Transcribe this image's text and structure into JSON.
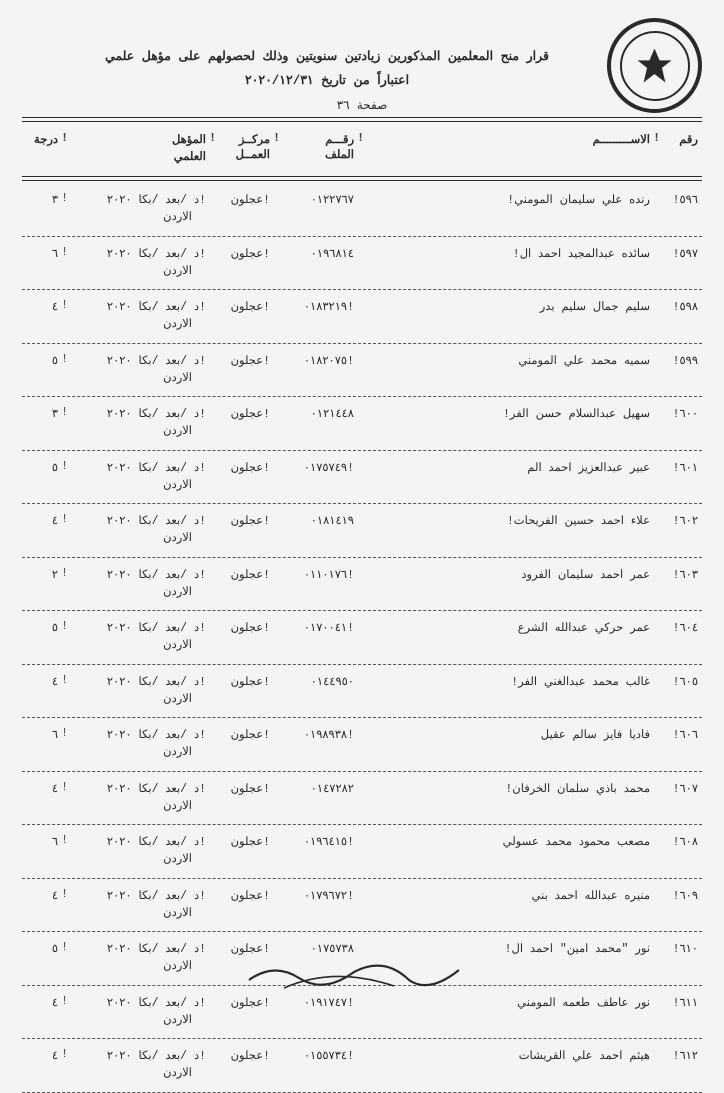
{
  "seal_label": "المملكة الأردنية الهاشمية — وزارة التربية والتعليم",
  "title_line1": "قرار منح المعلمين المذكورين زيادتين سنويتين وذلك لحصولهم على مؤهل علمي",
  "title_line2": "اعتباراً من تاريخ ٢٠٢٠/١٢/٣١",
  "page_label": "صفحة ٣٦",
  "headers": {
    "seq": "رقم",
    "name": "الاســـــــــم",
    "file_l1": "رقـــم",
    "file_l2": "الملف",
    "center_l1": "مركــز",
    "center_l2": "العمــل",
    "qual_l1": "المؤهل",
    "qual_l2": "العلمي",
    "grade": "درجة"
  },
  "qual_common_l1": "!د /بعد /بكا   ٢٠٢٠",
  "qual_common_l2": "الاردن",
  "center_common": "!عجلون",
  "rows": [
    {
      "seq": "٥٩٦!",
      "name": "رنده علي سليمان المومني!",
      "file": "٠١٢٢٧٦٧",
      "grade": "٣"
    },
    {
      "seq": "٥٩٧!",
      "name": "سائده عبدالمجيد احمد ال!",
      "file": "٠١٩٦٨١٤",
      "grade": "٦"
    },
    {
      "seq": "٥٩٨!",
      "name": "سليم جمال سليم بدر",
      "file": "!٠١٨٣٢١٩",
      "grade": "٤"
    },
    {
      "seq": "٥٩٩!",
      "name": "سميه محمد علي المومني",
      "file": "!٠١٨٢٠٧٥",
      "grade": "٥"
    },
    {
      "seq": "٦٠٠!",
      "name": "سهيل عبدالسلام حسن الفر!",
      "file": "٠١٢١٤٤٨",
      "grade": "٣"
    },
    {
      "seq": "٦٠١!",
      "name": "عبير عبدالعزيز احمد الم",
      "file": "!٠١٧٥٧٤٩",
      "grade": "٥"
    },
    {
      "seq": "٦٠٢!",
      "name": "علاء احمد حسين الفريحات!",
      "file": "٠١٨١٤١٩",
      "grade": "٤"
    },
    {
      "seq": "٦٠٣!",
      "name": "عمر احمد سليمان الفرود",
      "file": "!٠١١٠١٧٦",
      "grade": "٢"
    },
    {
      "seq": "٦٠٤!",
      "name": "عمر حركي عبدالله الشرع",
      "file": "!٠١٧٠٠٤١",
      "grade": "٥"
    },
    {
      "seq": "٦٠٥!",
      "name": "غالب محمد عبدالغني الفر!",
      "file": "٠١٤٤٩٥٠",
      "grade": "٤"
    },
    {
      "seq": "٦٠٦!",
      "name": "فاديا فايز سالم عقيل",
      "file": "!٠١٩٨٩٣٨",
      "grade": "٦"
    },
    {
      "seq": "٦٠٧!",
      "name": "محمد باذي سلمان الخرفان!",
      "file": "٠١٤٧٢٨٢",
      "grade": "٤"
    },
    {
      "seq": "٦٠٨!",
      "name": "مصعب محمود محمد عسولي",
      "file": "!٠١٩٦٤١٥",
      "grade": "٦"
    },
    {
      "seq": "٦٠٩!",
      "name": "منيره عبدالله احمد بني",
      "file": "!٠١٧٩٦٧٢",
      "grade": "٤"
    },
    {
      "seq": "٦١٠!",
      "name": "نور \"محمد امين\" احمد ال!",
      "file": "٠١٧٥٧٣٨",
      "grade": "٥"
    },
    {
      "seq": "٦١١!",
      "name": "نور عاطف طعمه المومني",
      "file": "!٠١٩١٧٤٧",
      "grade": "٤"
    },
    {
      "seq": "٦١٢!",
      "name": "هيثم احمد علي القريشات",
      "file": "!٠١٥٥٧٣٤",
      "grade": "٤"
    }
  ],
  "colors": {
    "text": "#2a2a2a",
    "bg": "#f5f4f2",
    "dash": "#555555"
  }
}
